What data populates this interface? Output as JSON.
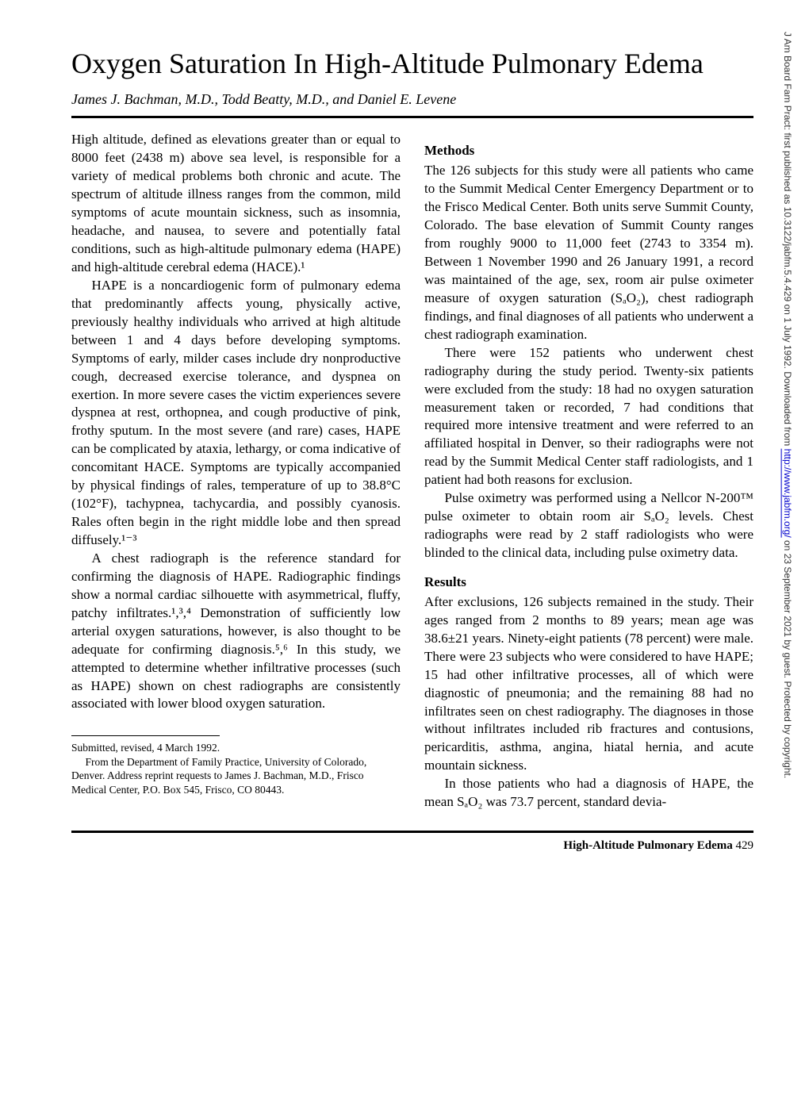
{
  "title": "Oxygen Saturation In High-Altitude Pulmonary Edema",
  "authors": "James J. Bachman, M.D., Todd Beatty, M.D., and Daniel E. Levene",
  "col1": {
    "p1": "High altitude, defined as elevations greater than or equal to 8000 feet (2438 m) above sea level, is responsible for a variety of medical problems both chronic and acute. The spectrum of altitude illness ranges from the common, mild symptoms of acute mountain sickness, such as insomnia, headache, and nausea, to severe and potentially fatal conditions, such as high-altitude pulmonary edema (HAPE) and high-altitude cerebral edema (HACE).¹",
    "p2": "HAPE is a noncardiogenic form of pulmonary edema that predominantly affects young, physically active, previously healthy individuals who arrived at high altitude between 1 and 4 days before developing symptoms. Symptoms of early, milder cases include dry nonproductive cough, decreased exercise tolerance, and dyspnea on exertion. In more severe cases the victim experiences severe dyspnea at rest, orthopnea, and cough productive of pink, frothy sputum. In the most severe (and rare) cases, HAPE can be complicated by ataxia, lethargy, or coma indicative of concomitant HACE. Symptoms are typically accompanied by physical findings of rales, temperature of up to 38.8°C (102°F), tachypnea, tachycardia, and possibly cyanosis. Rales often begin in the right middle lobe and then spread diffusely.¹⁻³",
    "p3": "A chest radiograph is the reference standard for confirming the diagnosis of HAPE. Radiographic findings show a normal cardiac silhouette with asymmetrical, fluffy, patchy infiltrates.¹,³,⁴ Demonstration of sufficiently low arterial oxygen saturations, however, is also thought to be adequate for confirming diagnosis.⁵,⁶ In this study, we attempted to determine whether infiltrative processes (such as HAPE) shown on chest radiographs are consistently associated with lower blood oxygen saturation."
  },
  "footnote": {
    "f1": "Submitted, revised, 4 March 1992.",
    "f2": "From the Department of Family Practice, University of Colorado, Denver. Address reprint requests to James J. Bachman, M.D., Frisco Medical Center, P.O. Box 545, Frisco, CO 80443."
  },
  "col2": {
    "methods_head": "Methods",
    "m1": "The 126 subjects for this study were all patients who came to the Summit Medical Center Emergency Department or to the Frisco Medical Center. Both units serve Summit County, Colorado. The base elevation of Summit County ranges from roughly 9000 to 11,000 feet (2743 to 3354 m). Between 1 November 1990 and 26 January 1991, a record was maintained of the age, sex, room air pulse oximeter measure of oxygen saturation (SₐO₂), chest radiograph findings, and final diagnoses of all patients who underwent a chest radiograph examination.",
    "m2": "There were 152 patients who underwent chest radiography during the study period. Twenty-six patients were excluded from the study: 18 had no oxygen saturation measurement taken or recorded, 7 had conditions that required more intensive treatment and were referred to an affiliated hospital in Denver, so their radiographs were not read by the Summit Medical Center staff radiologists, and 1 patient had both reasons for exclusion.",
    "m3": "Pulse oximetry was performed using a Nellcor N-200™ pulse oximeter to obtain room air SₐO₂ levels. Chest radiographs were read by 2 staff radiologists who were blinded to the clinical data, including pulse oximetry data.",
    "results_head": "Results",
    "r1": "After exclusions, 126 subjects remained in the study. Their ages ranged from 2 months to 89 years; mean age was 38.6±21 years. Ninety-eight patients (78 percent) were male. There were 23 subjects who were considered to have HAPE; 15 had other infiltrative processes, all of which were diagnostic of pneumonia; and the remaining 88 had no infiltrates seen on chest radiography. The diagnoses in those without infiltrates included rib fractures and contusions, pericarditis, asthma, angina, hiatal hernia, and acute mountain sickness.",
    "r2": "In those patients who had a diagnosis of HAPE, the mean SₐO₂ was 73.7 percent, standard devia-"
  },
  "page_footer": {
    "label": "High-Altitude Pulmonary Edema",
    "num": "429"
  },
  "sidebar": {
    "prefix": "J Am Board Fam Pract: first published as 10.3122/jabfm.5.4.429 on 1 July 1992. Downloaded from ",
    "link": "http://www.jabfm.org/",
    "suffix": " on 23 September 2021 by guest. Protected by copyright."
  }
}
